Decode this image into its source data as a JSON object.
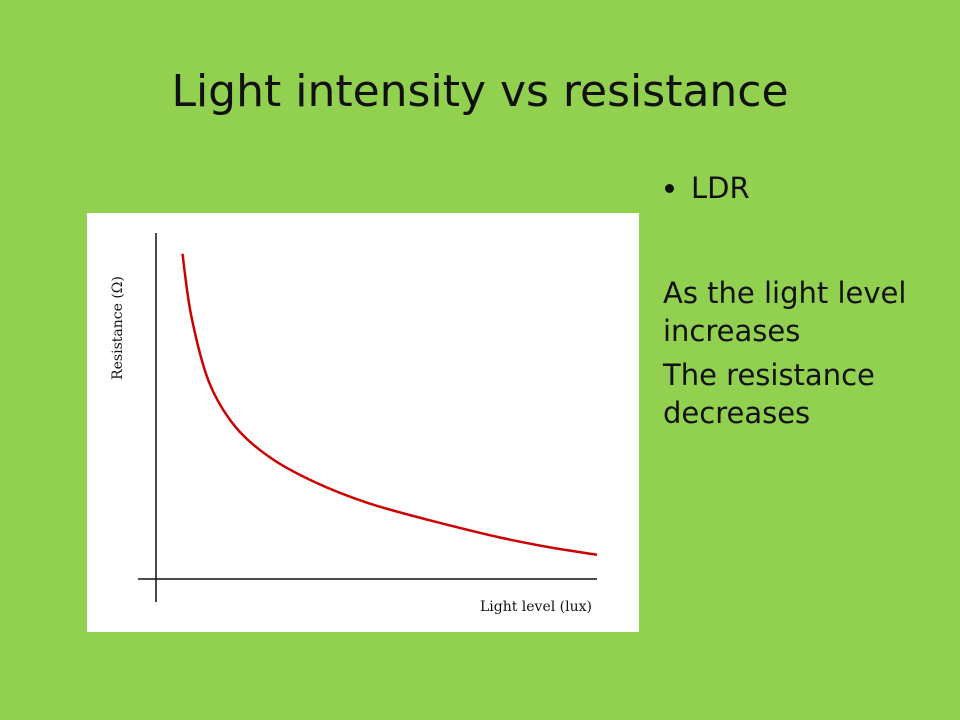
{
  "slide": {
    "title": "Light intensity vs resistance",
    "background_color": "#92d050"
  },
  "bullets": {
    "items": [
      "LDR"
    ]
  },
  "paragraphs": [
    "As the light level increases",
    "The resistance decreases"
  ],
  "chart_data": {
    "type": "line",
    "title": "",
    "xlabel": "Light level (lux)",
    "ylabel": "Resistance (Ω)",
    "grid": false,
    "legend": "none",
    "series": [
      {
        "color": "#cc0000",
        "x": [
          0.06,
          0.08,
          0.12,
          0.18,
          0.26,
          0.36,
          0.48,
          0.62,
          0.78,
          0.9,
          1.0
        ],
        "y": [
          0.94,
          0.76,
          0.57,
          0.44,
          0.35,
          0.28,
          0.22,
          0.17,
          0.12,
          0.09,
          0.07
        ]
      }
    ]
  }
}
